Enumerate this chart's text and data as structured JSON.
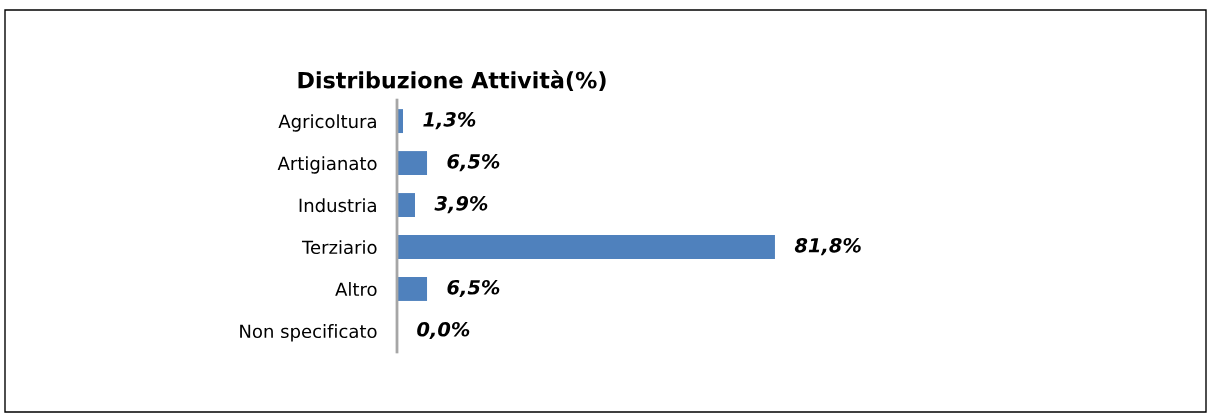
{
  "chart_data": {
    "type": "bar",
    "orientation": "horizontal",
    "title": "Distribuzione Attività(%)",
    "categories": [
      "Agricoltura",
      "Artigianato",
      "Industria",
      "Terziario",
      "Altro",
      "Non specificato"
    ],
    "values": [
      1.3,
      6.5,
      3.9,
      81.8,
      6.5,
      0.0
    ],
    "color": "#4f81bd",
    "value_labels": [
      "1,3%",
      "6,5%",
      "3,9%",
      "81,8%",
      "6,5%",
      "0,0%"
    ],
    "grid": false,
    "legend": false
  }
}
